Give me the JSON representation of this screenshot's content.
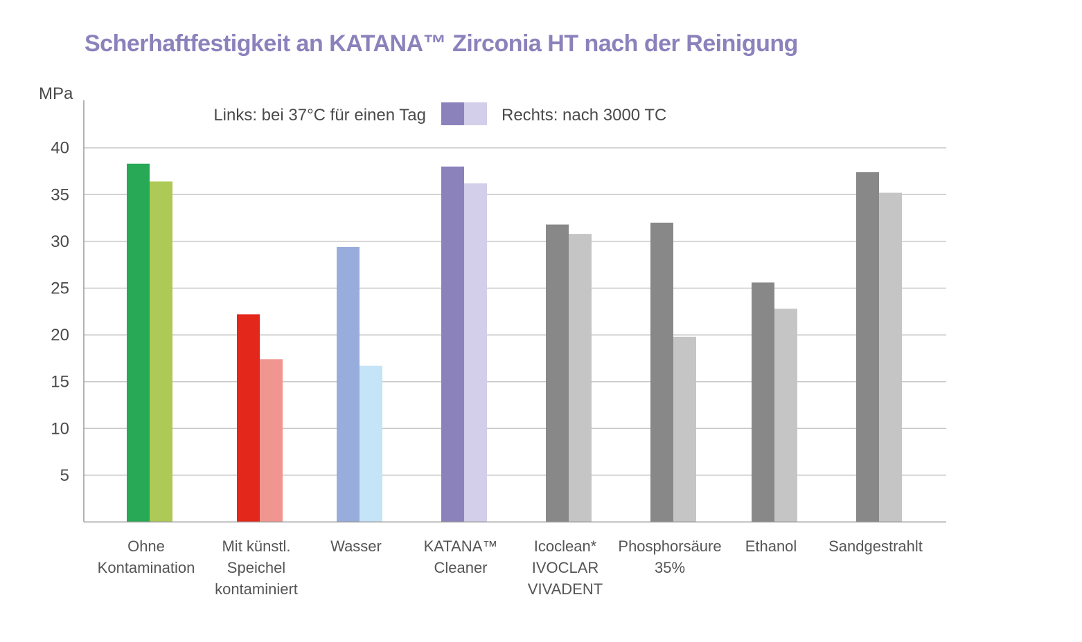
{
  "chart_data": {
    "type": "bar",
    "title": "Scherhaftfestigkeit an KATANA™ Zirconia HT nach der Reinigung",
    "ylabel": "MPa",
    "ylim": [
      0,
      45
    ],
    "yticks": [
      5,
      10,
      15,
      20,
      25,
      30,
      35,
      40
    ],
    "grid": true,
    "legend": {
      "placement": "top-center",
      "left_label": "Links: bei 37°C für einen Tag",
      "right_label": "Rechts: nach 3000 TC",
      "left_color": "#8b82bc",
      "right_color": "#d3cee9"
    },
    "categories": [
      [
        "Ohne",
        "Kontamination"
      ],
      [
        "Mit künstl.",
        "Speichel",
        "kontaminiert"
      ],
      [
        "Wasser"
      ],
      [
        "KATANA™",
        "Cleaner"
      ],
      [
        "Icoclean*",
        "IVOCLAR",
        "VIVADENT"
      ],
      [
        "Phosphorsäure",
        "35%"
      ],
      [
        "Ethanol"
      ],
      [
        "Sandgestrahlt"
      ]
    ],
    "series": [
      {
        "values": [
          38.3,
          22.2,
          29.4,
          38.0,
          31.8,
          32.0,
          25.6,
          37.4
        ]
      },
      {
        "values": [
          36.4,
          17.4,
          16.7,
          36.2,
          30.8,
          19.8,
          22.8,
          35.2
        ]
      }
    ],
    "colors": {
      "left": [
        "#27a955",
        "#e3271b",
        "#98addb",
        "#8b82bc",
        "#888888",
        "#888888",
        "#888888",
        "#888888"
      ],
      "right": [
        "#adc956",
        "#f19591",
        "#c5e4f7",
        "#d3cee9",
        "#c5c5c5",
        "#c5c5c5",
        "#c5c5c5",
        "#c5c5c5"
      ],
      "gridline": "#c8c8c8",
      "axis": "#9a9a9a"
    }
  }
}
